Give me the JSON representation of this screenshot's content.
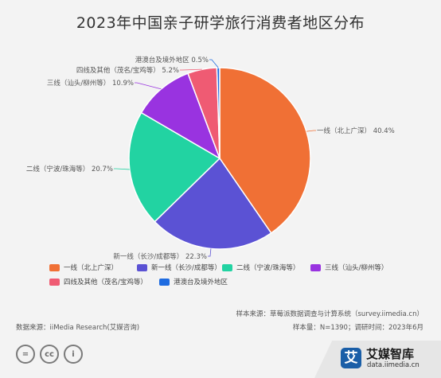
{
  "page": {
    "title": "2023年中国亲子研学旅行消费者地区分布"
  },
  "chart_data": {
    "type": "pie",
    "title": "2023年中国亲子研学旅行消费者地区分布",
    "slices": [
      {
        "label": "一线（北上广深）",
        "value": 40.4,
        "value_label": "40.4%",
        "color": "#f07035"
      },
      {
        "label": "新一线（长沙/成都等）",
        "value": 22.3,
        "value_label": "22.3%",
        "color": "#5b52d4"
      },
      {
        "label": "二线（宁波/珠海等）",
        "value": 20.7,
        "value_label": "20.7%",
        "color": "#22d3a2"
      },
      {
        "label": "三线（汕头/柳州等）",
        "value": 10.9,
        "value_label": "10.9%",
        "color": "#9933e0"
      },
      {
        "label": "四线及其他（茂名/宝鸡等）",
        "value": 5.2,
        "value_label": "5.2%",
        "color": "#ef5b73"
      },
      {
        "label": "港澳台及境外地区",
        "value": 0.5,
        "value_label": "0.5%",
        "color": "#1e6be0"
      }
    ],
    "legend_position": "bottom"
  },
  "source": {
    "sample_source": "样本来源：草莓派数据调查与计算系统（survey.iimedia.cn）",
    "sample_size": "样本量：N=1390；调研时间：2023年6月",
    "data_source": "数据来源：iiMedia Research(艾媒咨询)"
  },
  "brand": {
    "logo_char": "艾",
    "name": "艾媒智库",
    "url": "data.iimedia.cn"
  },
  "license_icons": [
    "=",
    "cc",
    "i"
  ]
}
